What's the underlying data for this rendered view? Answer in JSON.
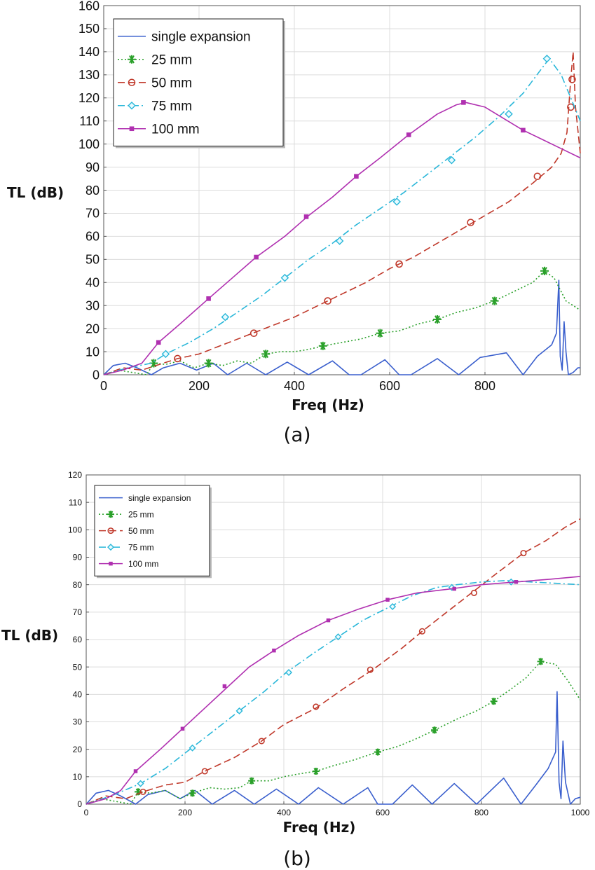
{
  "chart_data": [
    {
      "type": "line",
      "panel_label": "(a)",
      "xlabel": "Freq (Hz)",
      "ylabel": "TL (dB)",
      "xlim": [
        0,
        1000
      ],
      "ylim": [
        0,
        160
      ],
      "x_ticks": [
        0,
        200,
        400,
        600,
        800
      ],
      "y_ticks": [
        0,
        10,
        20,
        30,
        40,
        50,
        60,
        70,
        80,
        90,
        100,
        110,
        120,
        130,
        140,
        150,
        160
      ],
      "grid": true,
      "legend_position": "top-left",
      "series": [
        {
          "name": "single expansion",
          "color": "#3a5fcd",
          "style": "solid",
          "marker": "none",
          "x": [
            0,
            20,
            45,
            70,
            100,
            125,
            160,
            195,
            230,
            260,
            300,
            340,
            385,
            430,
            480,
            515,
            540,
            590,
            620,
            645,
            700,
            745,
            790,
            845,
            880,
            910,
            940,
            950,
            955,
            958,
            962,
            966,
            970,
            975,
            985,
            995,
            1000
          ],
          "y": [
            0,
            4,
            5,
            3,
            0,
            3,
            5,
            2,
            5,
            0,
            5,
            0,
            5.5,
            0,
            6,
            0,
            0,
            6.5,
            0,
            0,
            7,
            0,
            7.5,
            9.5,
            0,
            8,
            13,
            18,
            41,
            8,
            2,
            23,
            10,
            0,
            1,
            3,
            3
          ]
        },
        {
          "name": "25 mm",
          "color": "#2aa02a",
          "style": "dotted",
          "marker": "asterisk",
          "x": [
            0,
            30,
            60,
            90,
            105,
            130,
            160,
            190,
            220,
            250,
            280,
            310,
            340,
            370,
            400,
            430,
            460,
            500,
            540,
            580,
            620,
            660,
            700,
            740,
            780,
            820,
            860,
            900,
            925,
            945,
            970,
            1000
          ],
          "y": [
            0,
            2,
            1,
            0,
            5,
            4.5,
            6,
            3,
            5,
            4,
            6,
            5,
            9,
            10,
            10,
            11,
            12.5,
            14,
            15.5,
            18,
            19,
            22,
            24,
            27,
            29,
            32,
            36,
            40,
            45,
            42,
            32,
            28
          ],
          "marker_x": [
            105,
            220,
            340,
            460,
            580,
            700,
            820,
            925
          ],
          "marker_y": [
            5,
            5,
            9,
            12.5,
            18,
            24,
            32,
            45
          ]
        },
        {
          "name": "50 mm",
          "color": "#c0392b",
          "style": "dashed",
          "marker": "circle",
          "x": [
            0,
            40,
            80,
            110,
            155,
            200,
            250,
            300,
            350,
            400,
            450,
            500,
            550,
            600,
            650,
            700,
            750,
            800,
            850,
            900,
            940,
            960,
            972,
            980,
            985,
            990,
            1000
          ],
          "y": [
            0,
            3,
            2,
            4,
            7,
            9,
            13,
            17,
            21,
            25,
            30,
            35,
            40,
            46,
            51,
            57,
            63,
            69,
            75,
            83,
            90,
            96,
            105,
            128,
            140,
            116,
            96
          ],
          "marker_x": [
            155,
            315,
            470,
            620,
            770,
            910,
            980,
            983
          ],
          "marker_y": [
            7,
            18,
            32,
            48,
            66,
            86,
            116,
            128
          ]
        },
        {
          "name": "75 mm",
          "color": "#2ab7d9",
          "style": "dashdot",
          "marker": "diamond",
          "x": [
            0,
            50,
            100,
            130,
            180,
            230,
            280,
            330,
            380,
            430,
            480,
            530,
            580,
            630,
            680,
            730,
            780,
            830,
            880,
            920,
            935,
            960,
            980,
            1000
          ],
          "y": [
            0,
            3,
            5,
            9,
            14,
            20,
            27,
            34,
            42,
            50,
            57,
            65,
            72,
            79,
            87,
            95,
            103,
            112,
            122,
            133,
            137,
            130,
            120,
            110
          ],
          "marker_x": [
            130,
            255,
            380,
            495,
            615,
            730,
            850,
            930
          ],
          "marker_y": [
            9,
            25,
            42,
            58,
            75,
            93,
            113,
            137
          ]
        },
        {
          "name": "100 mm",
          "color": "#b030b0",
          "style": "solid",
          "marker": "square",
          "x": [
            0,
            40,
            80,
            115,
            160,
            220,
            270,
            320,
            380,
            430,
            480,
            530,
            580,
            640,
            700,
            740,
            760,
            800,
            840,
            880,
            920,
            960,
            1000
          ],
          "y": [
            0,
            2,
            5,
            14,
            22,
            33,
            42,
            51,
            60,
            69,
            77,
            86,
            94,
            104,
            113,
            117,
            118,
            116,
            111,
            106,
            102,
            98,
            94
          ],
          "marker_x": [
            115,
            220,
            320,
            425,
            530,
            640,
            755,
            880
          ],
          "marker_y": [
            14,
            33,
            51,
            68.5,
            86,
            104,
            118,
            106
          ]
        }
      ]
    },
    {
      "type": "line",
      "panel_label": "(b)",
      "xlabel": "Freq (Hz)",
      "ylabel": "TL (dB)",
      "xlim": [
        0,
        1000
      ],
      "ylim": [
        0,
        120
      ],
      "x_ticks": [
        0,
        200,
        400,
        600,
        800,
        1000
      ],
      "y_ticks": [
        0,
        10,
        20,
        30,
        40,
        50,
        60,
        70,
        80,
        90,
        100,
        110,
        120
      ],
      "grid": true,
      "legend_position": "top-left",
      "series": [
        {
          "name": "single expansion",
          "color": "#3a5fcd",
          "style": "solid",
          "marker": "none",
          "x": [
            0,
            20,
            45,
            70,
            100,
            125,
            160,
            190,
            220,
            255,
            300,
            340,
            385,
            430,
            470,
            520,
            570,
            590,
            620,
            660,
            700,
            745,
            790,
            845,
            880,
            910,
            935,
            950,
            953,
            957,
            961,
            965,
            970,
            980,
            990,
            1000
          ],
          "y": [
            0,
            4,
            5,
            3,
            0,
            3.5,
            5,
            2,
            5,
            0,
            5,
            0,
            5.5,
            0,
            6,
            0,
            6,
            0,
            0,
            7,
            0,
            7.5,
            0,
            9.5,
            0,
            7,
            13,
            19,
            41,
            8,
            2,
            23,
            8,
            0,
            2,
            2.5
          ]
        },
        {
          "name": "25 mm",
          "color": "#2aa02a",
          "style": "dotted",
          "marker": "asterisk",
          "x": [
            0,
            30,
            60,
            90,
            105,
            130,
            160,
            190,
            215,
            250,
            280,
            310,
            335,
            370,
            400,
            430,
            465,
            500,
            540,
            590,
            630,
            670,
            705,
            750,
            790,
            825,
            860,
            890,
            920,
            950,
            975,
            1000
          ],
          "y": [
            0,
            2,
            1,
            0,
            4.5,
            4,
            5,
            2,
            4,
            6,
            5.5,
            6,
            8.5,
            8.5,
            10,
            11,
            12,
            14,
            16,
            19,
            21,
            24,
            27,
            31,
            34,
            37.5,
            42,
            46,
            52,
            51,
            45,
            38
          ],
          "marker_x": [
            105,
            215,
            335,
            465,
            590,
            705,
            825,
            920
          ],
          "marker_y": [
            4.5,
            4,
            8.5,
            12,
            19,
            27,
            37.5,
            52
          ]
        },
        {
          "name": "50 mm",
          "color": "#c0392b",
          "style": "dashed",
          "marker": "circle",
          "x": [
            0,
            40,
            80,
            115,
            160,
            200,
            240,
            300,
            355,
            400,
            465,
            520,
            580,
            640,
            680,
            730,
            780,
            830,
            885,
            930,
            970,
            1000
          ],
          "y": [
            0,
            3,
            2,
            4.5,
            7,
            8,
            12,
            17,
            23,
            29,
            35,
            42,
            49,
            57,
            63,
            70,
            77,
            84,
            91.5,
            96,
            101,
            104
          ],
          "marker_x": [
            115,
            240,
            355,
            465,
            575,
            680,
            785,
            885
          ],
          "marker_y": [
            4.5,
            12,
            23,
            35.5,
            49,
            63,
            77,
            91.5
          ]
        },
        {
          "name": "75 mm",
          "color": "#2ab7d9",
          "style": "dashdot",
          "marker": "diamond",
          "x": [
            0,
            50,
            110,
            160,
            210,
            260,
            310,
            360,
            405,
            460,
            510,
            560,
            615,
            660,
            710,
            750,
            800,
            850,
            900,
            950,
            1000
          ],
          "y": [
            0,
            3,
            7.5,
            13,
            20,
            27,
            34,
            41,
            48,
            55,
            61,
            67,
            72,
            76,
            79,
            80,
            81,
            81.5,
            81,
            80.5,
            80
          ],
          "marker_x": [
            110,
            215,
            310,
            410,
            510,
            620,
            740,
            860
          ],
          "marker_y": [
            7.5,
            20.5,
            34,
            48,
            61,
            72,
            79,
            81
          ]
        },
        {
          "name": "100 mm",
          "color": "#b030b0",
          "style": "solid",
          "marker": "square",
          "x": [
            0,
            40,
            70,
            100,
            150,
            195,
            240,
            285,
            330,
            380,
            430,
            490,
            550,
            610,
            670,
            740,
            800,
            870,
            940,
            1000
          ],
          "y": [
            0,
            2,
            5,
            12,
            20,
            27.5,
            35,
            42.5,
            50,
            56,
            61.5,
            67,
            71,
            74.5,
            77,
            78.5,
            80,
            81,
            82,
            83
          ],
          "marker_x": [
            100,
            195,
            280,
            380,
            490,
            610,
            745,
            870
          ],
          "marker_y": [
            12,
            27.5,
            43,
            56,
            67,
            74.5,
            78.5,
            81
          ]
        }
      ]
    }
  ]
}
